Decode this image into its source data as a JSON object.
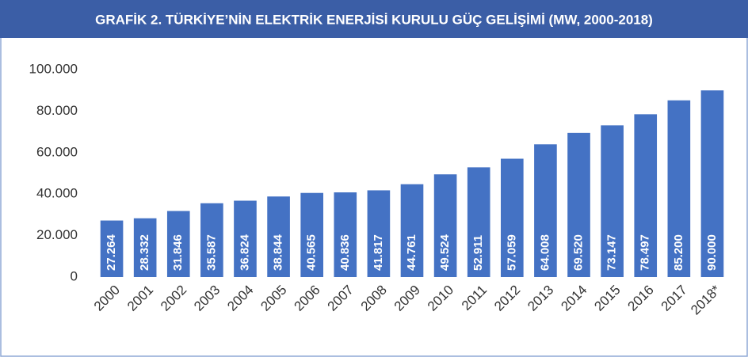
{
  "chart_data": {
    "type": "bar",
    "title": "GRAFİK 2. TÜRKİYE’NİN ELEKTRİK ENERJİSİ KURULU GÜÇ GELİŞİMİ (MW, 2000-2018)",
    "categories": [
      "2000",
      "2001",
      "2002",
      "2003",
      "2004",
      "2005",
      "2006",
      "2007",
      "2008",
      "2009",
      "2010",
      "2011",
      "2012",
      "2013",
      "2014",
      "2015",
      "2016",
      "2017",
      "2018*"
    ],
    "values": [
      27264,
      28332,
      31846,
      35587,
      36824,
      38844,
      40565,
      40836,
      41817,
      44761,
      49524,
      52911,
      57059,
      64008,
      69520,
      73147,
      78497,
      85200,
      90000
    ],
    "value_labels": [
      "27.264",
      "28.332",
      "31.846",
      "35.587",
      "36.824",
      "38.844",
      "40.565",
      "40.836",
      "41.817",
      "44.761",
      "49.524",
      "52.911",
      "57.059",
      "64.008",
      "69.520",
      "73.147",
      "78.497",
      "85.200",
      "90.000"
    ],
    "color": "#4472c4",
    "ylim": [
      0,
      100000
    ],
    "yticks": [
      0,
      {
        "value": 20000,
        "label": "20.000"
      },
      {
        "value": 40000,
        "label": "40.000"
      },
      {
        "value": 60000,
        "label": "60.000"
      },
      {
        "value": 80000,
        "label": "80.000"
      },
      {
        "value": 100000,
        "label": "100.000"
      }
    ],
    "grid": false
  }
}
